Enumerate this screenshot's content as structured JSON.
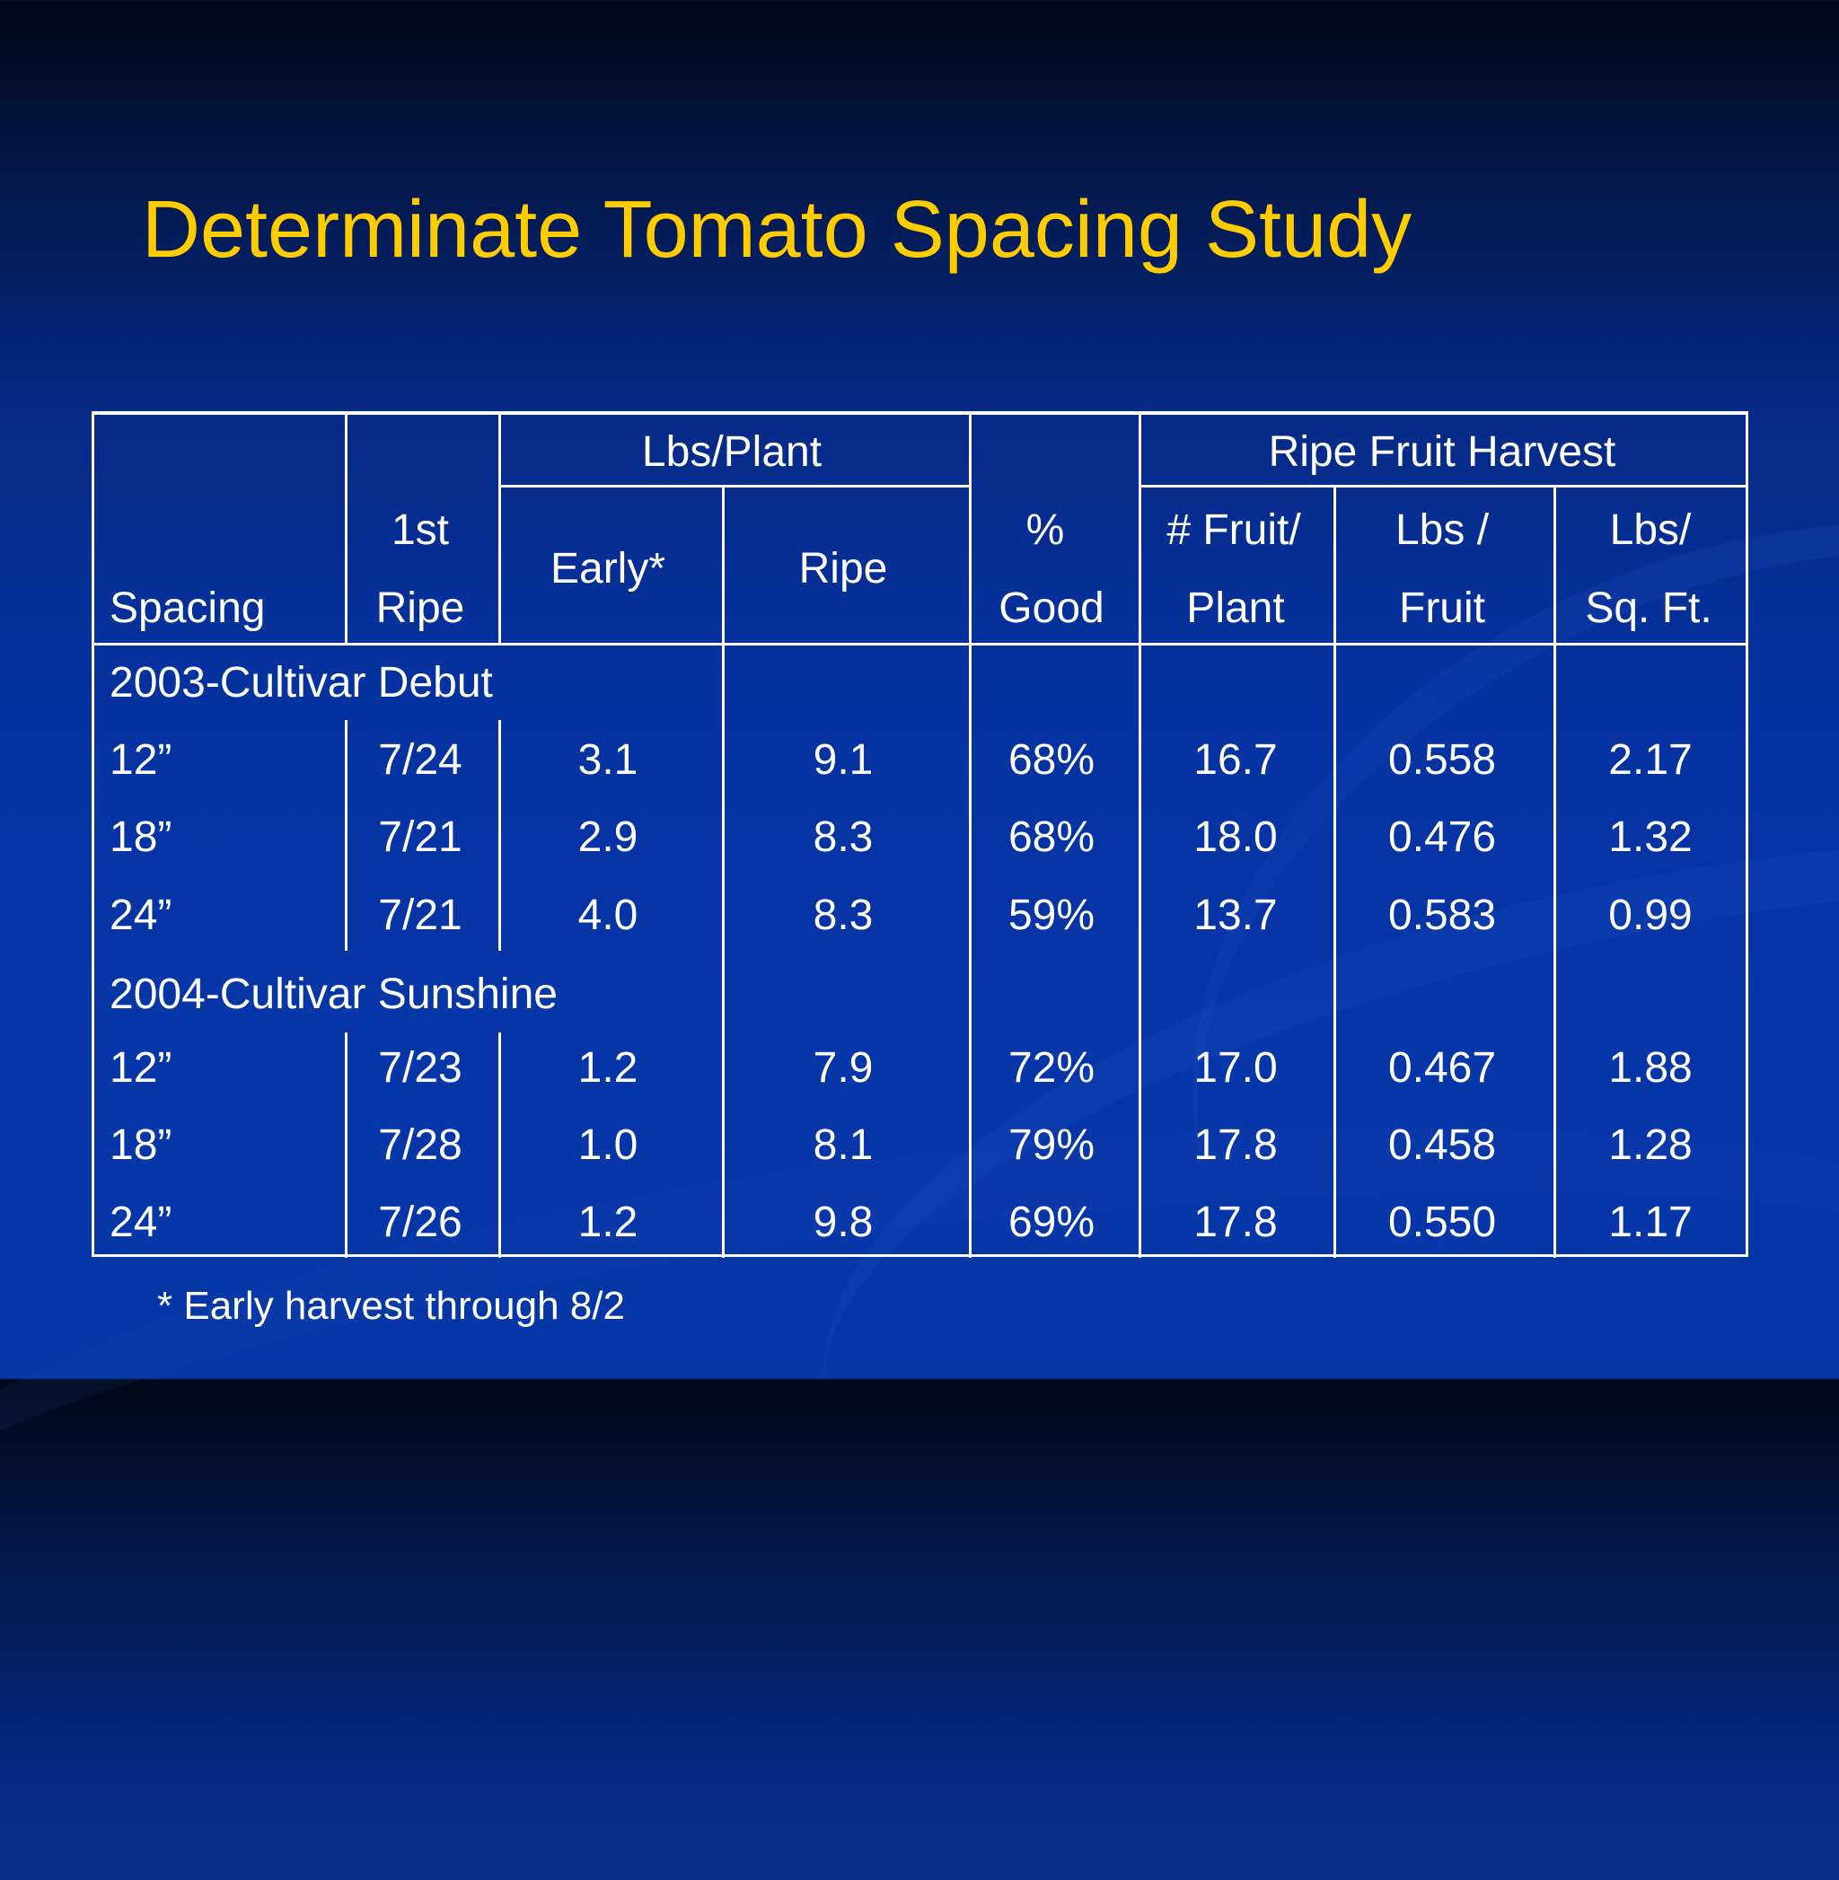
{
  "slide": {
    "title": "Determinate Tomato Spacing Study",
    "title_color": "#ffcc00",
    "background_color": "#0736a8",
    "footnote": "* Early harvest through 8/2"
  },
  "table": {
    "group_headers": {
      "lbs_plant": "Lbs/Plant",
      "ripe_fruit_harvest": "Ripe Fruit Harvest"
    },
    "headers": {
      "spacing": "Spacing",
      "first_ripe_1": "1st",
      "first_ripe_2": "Ripe",
      "early": "Early*",
      "ripe": "Ripe",
      "good_1": "%",
      "good_2": "Good",
      "fruit_plant_1": "# Fruit/",
      "fruit_plant_2": "Plant",
      "lbs_fruit_1": "Lbs /",
      "lbs_fruit_2": "Fruit",
      "lbs_sqft_1": "Lbs/",
      "lbs_sqft_2": "Sq. Ft."
    },
    "sections": [
      {
        "label": "2003-Cultivar Debut",
        "rows": [
          [
            "12”",
            "7/24",
            "3.1",
            "9.1",
            "68%",
            "16.7",
            "0.558",
            "2.17"
          ],
          [
            "18”",
            "7/21",
            "2.9",
            "8.3",
            "68%",
            "18.0",
            "0.476",
            "1.32"
          ],
          [
            "24”",
            "7/21",
            "4.0",
            "8.3",
            "59%",
            "13.7",
            "0.583",
            "0.99"
          ]
        ]
      },
      {
        "label": "2004-Cultivar Sunshine",
        "rows": [
          [
            "12”",
            "7/23",
            "1.2",
            "7.9",
            "72%",
            "17.0",
            "0.467",
            "1.88"
          ],
          [
            "18”",
            "7/28",
            "1.0",
            "8.1",
            "79%",
            "17.8",
            "0.458",
            "1.28"
          ],
          [
            "24”",
            "7/26",
            "1.2",
            "9.8",
            "69%",
            "17.8",
            "0.550",
            "1.17"
          ]
        ]
      }
    ]
  }
}
